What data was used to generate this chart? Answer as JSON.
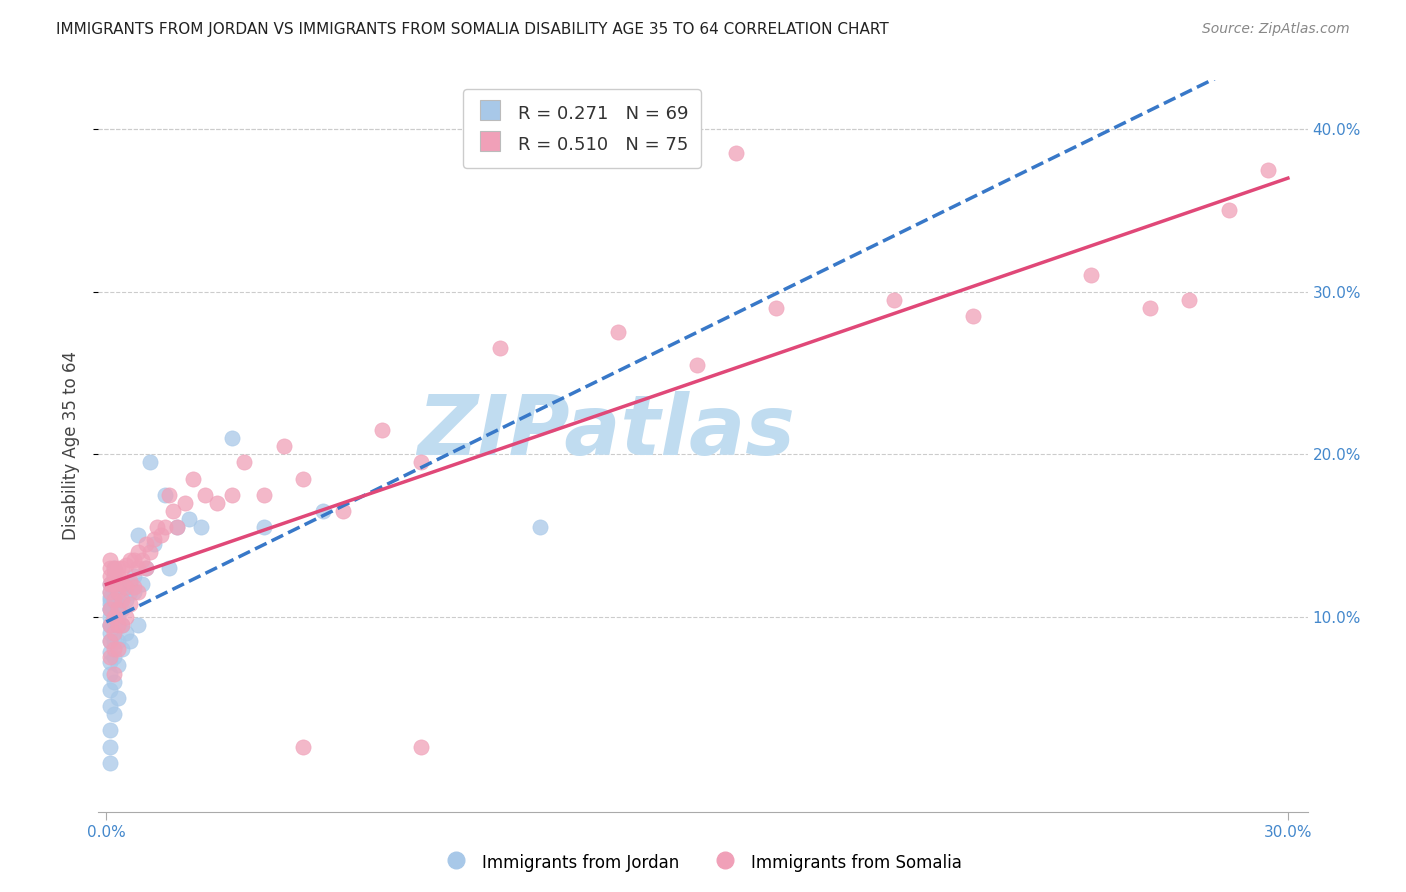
{
  "title": "IMMIGRANTS FROM JORDAN VS IMMIGRANTS FROM SOMALIA DISABILITY AGE 35 TO 64 CORRELATION CHART",
  "source": "Source: ZipAtlas.com",
  "ylabel": "Disability Age 35 to 64",
  "xlim": [
    -0.002,
    0.305
  ],
  "ylim": [
    -0.02,
    0.43
  ],
  "xticks": [
    0.0,
    0.3
  ],
  "yticks": [
    0.1,
    0.2,
    0.3,
    0.4
  ],
  "jordan_color": "#a8c8e8",
  "somalia_color": "#f0a0b8",
  "jordan_R": 0.271,
  "jordan_N": 69,
  "somalia_R": 0.51,
  "somalia_N": 75,
  "jordan_line_color": "#3878c8",
  "somalia_line_color": "#e04878",
  "jordan_line_style": "--",
  "somalia_line_style": "-",
  "watermark": "ZIPatlas",
  "watermark_color": "#c0dcf0",
  "legend_label_jordan": "Immigrants from Jordan",
  "legend_label_somalia": "Immigrants from Somalia",
  "jordan_x": [
    0.001,
    0.001,
    0.001,
    0.001,
    0.001,
    0.001,
    0.001,
    0.001,
    0.001,
    0.001,
    0.001,
    0.001,
    0.001,
    0.001,
    0.001,
    0.001,
    0.001,
    0.001,
    0.001,
    0.001,
    0.002,
    0.002,
    0.002,
    0.002,
    0.002,
    0.002,
    0.002,
    0.002,
    0.002,
    0.002,
    0.002,
    0.002,
    0.003,
    0.003,
    0.003,
    0.003,
    0.003,
    0.003,
    0.003,
    0.003,
    0.003,
    0.004,
    0.004,
    0.004,
    0.004,
    0.004,
    0.005,
    0.005,
    0.005,
    0.006,
    0.006,
    0.006,
    0.007,
    0.007,
    0.008,
    0.008,
    0.009,
    0.01,
    0.011,
    0.012,
    0.015,
    0.016,
    0.018,
    0.021,
    0.024,
    0.032,
    0.04,
    0.055,
    0.11
  ],
  "jordan_y": [
    0.085,
    0.09,
    0.095,
    0.1,
    0.105,
    0.105,
    0.108,
    0.11,
    0.112,
    0.115,
    0.12,
    0.095,
    0.078,
    0.072,
    0.065,
    0.055,
    0.045,
    0.03,
    0.02,
    0.01,
    0.095,
    0.1,
    0.105,
    0.11,
    0.115,
    0.12,
    0.125,
    0.13,
    0.085,
    0.075,
    0.06,
    0.04,
    0.1,
    0.105,
    0.11,
    0.115,
    0.12,
    0.095,
    0.085,
    0.07,
    0.05,
    0.105,
    0.112,
    0.118,
    0.095,
    0.08,
    0.11,
    0.115,
    0.09,
    0.115,
    0.12,
    0.085,
    0.115,
    0.125,
    0.15,
    0.095,
    0.12,
    0.13,
    0.195,
    0.145,
    0.175,
    0.13,
    0.155,
    0.16,
    0.155,
    0.21,
    0.155,
    0.165,
    0.155
  ],
  "somalia_x": [
    0.001,
    0.001,
    0.001,
    0.001,
    0.001,
    0.001,
    0.001,
    0.001,
    0.001,
    0.002,
    0.002,
    0.002,
    0.002,
    0.002,
    0.002,
    0.002,
    0.002,
    0.003,
    0.003,
    0.003,
    0.003,
    0.003,
    0.003,
    0.004,
    0.004,
    0.004,
    0.004,
    0.005,
    0.005,
    0.005,
    0.006,
    0.006,
    0.006,
    0.007,
    0.007,
    0.008,
    0.008,
    0.008,
    0.009,
    0.01,
    0.01,
    0.011,
    0.012,
    0.013,
    0.014,
    0.015,
    0.016,
    0.017,
    0.018,
    0.02,
    0.022,
    0.025,
    0.028,
    0.032,
    0.035,
    0.04,
    0.045,
    0.05,
    0.06,
    0.07,
    0.08,
    0.1,
    0.13,
    0.15,
    0.17,
    0.2,
    0.22,
    0.25,
    0.265,
    0.275,
    0.285,
    0.295,
    0.05,
    0.08,
    0.16
  ],
  "somalia_y": [
    0.115,
    0.12,
    0.125,
    0.13,
    0.135,
    0.105,
    0.095,
    0.085,
    0.075,
    0.12,
    0.125,
    0.13,
    0.11,
    0.1,
    0.09,
    0.08,
    0.065,
    0.125,
    0.13,
    0.115,
    0.105,
    0.095,
    0.08,
    0.13,
    0.12,
    0.11,
    0.095,
    0.132,
    0.118,
    0.1,
    0.135,
    0.122,
    0.108,
    0.135,
    0.118,
    0.14,
    0.13,
    0.115,
    0.135,
    0.145,
    0.13,
    0.14,
    0.148,
    0.155,
    0.15,
    0.155,
    0.175,
    0.165,
    0.155,
    0.17,
    0.185,
    0.175,
    0.17,
    0.175,
    0.195,
    0.175,
    0.205,
    0.185,
    0.165,
    0.215,
    0.195,
    0.265,
    0.275,
    0.255,
    0.29,
    0.295,
    0.285,
    0.31,
    0.29,
    0.295,
    0.35,
    0.375,
    0.02,
    0.02,
    0.385
  ],
  "title_fontsize": 11,
  "axis_label_fontsize": 12,
  "tick_fontsize": 11,
  "source_fontsize": 10
}
